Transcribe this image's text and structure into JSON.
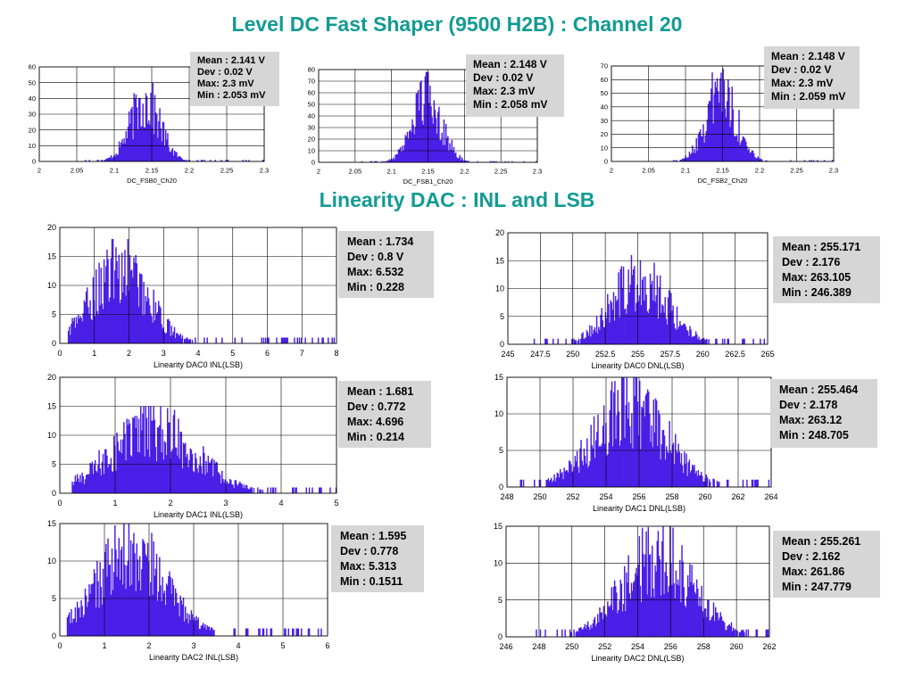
{
  "page": {
    "title": "Level DC Fast Shaper (9500 H2B) : Channel 20",
    "section_title": "Linearity DAC : INL and LSB"
  },
  "colors": {
    "bar": "#4a1fe6",
    "grid": "#000000",
    "stats_bg": "#d6d6d6",
    "title": "#129b93"
  },
  "chart_data": [
    {
      "id": "fsb0",
      "type": "bar",
      "xlabel": "DC_FSB0_Ch20",
      "ylabel": "",
      "xlim": [
        2,
        2.3
      ],
      "ylim": [
        0,
        60
      ],
      "xticks": [
        "2",
        "2.05",
        "2.1",
        "2.15",
        "2.2",
        "2.25",
        "2.3"
      ],
      "yticks": [
        "0",
        "10",
        "20",
        "30",
        "40",
        "50",
        "60"
      ],
      "distribution": {
        "mean": 2.141,
        "dev": 0.02,
        "min": 2.053,
        "max": 2.3,
        "peak": 52
      },
      "stats": [
        "Mean : 2.141 V",
        "Dev : 0.02 V",
        "Max: 2.3 mV",
        "Min : 2.053 mV"
      ]
    },
    {
      "id": "fsb1",
      "type": "bar",
      "xlabel": "DC_FSB1_Ch20",
      "ylabel": "",
      "xlim": [
        2,
        2.3
      ],
      "ylim": [
        0,
        80
      ],
      "xticks": [
        "2",
        "2.05",
        "2.1",
        "2.15",
        "2.2",
        "2.25",
        "2.3"
      ],
      "yticks": [
        "0",
        "10",
        "20",
        "30",
        "40",
        "50",
        "60",
        "70",
        "80"
      ],
      "distribution": {
        "mean": 2.148,
        "dev": 0.02,
        "min": 2.058,
        "max": 2.3,
        "peak": 78
      },
      "stats": [
        "Mean : 2.148 V",
        "Dev : 0.02 V",
        "Max: 2.3 mV",
        "Min : 2.058 mV"
      ]
    },
    {
      "id": "fsb2",
      "type": "bar",
      "xlabel": "DC_FSB2_Ch20",
      "ylabel": "",
      "xlim": [
        2,
        2.3
      ],
      "ylim": [
        0,
        70
      ],
      "xticks": [
        "2",
        "2.05",
        "2.1",
        "2.15",
        "2.2",
        "2.25",
        "2.3"
      ],
      "yticks": [
        "0",
        "10",
        "20",
        "30",
        "40",
        "50",
        "60",
        "70"
      ],
      "distribution": {
        "mean": 2.148,
        "dev": 0.02,
        "min": 2.059,
        "max": 2.3,
        "peak": 73
      },
      "stats": [
        "Mean : 2.148 V",
        "Dev : 0.02 V",
        "Max: 2.3 mV",
        "Min : 2.059 mV"
      ]
    },
    {
      "id": "inl0",
      "type": "bar",
      "xlabel": "Linearity DAC0 INL(LSB)",
      "ylabel": "",
      "xlim": [
        0,
        8
      ],
      "ylim": [
        0,
        20
      ],
      "xticks": [
        "0",
        "1",
        "2",
        "3",
        "4",
        "5",
        "6",
        "7",
        "8"
      ],
      "yticks": [
        "0",
        "5",
        "10",
        "15",
        "20"
      ],
      "distribution": {
        "mean": 1.734,
        "dev": 0.8,
        "min": 0.228,
        "max": 6.532,
        "peak": 18
      },
      "stats": [
        "Mean : 1.734",
        "Dev : 0.8 V",
        "Max: 6.532",
        "Min : 0.228"
      ]
    },
    {
      "id": "dnl0",
      "type": "bar",
      "xlabel": "Linearity DAC0 DNL(LSB)",
      "ylabel": "",
      "xlim": [
        245,
        265
      ],
      "ylim": [
        0,
        20
      ],
      "xticks": [
        "245",
        "247.5",
        "250",
        "252.5",
        "255",
        "257.5",
        "260",
        "262.5",
        "265"
      ],
      "yticks": [
        "0",
        "5",
        "10",
        "15",
        "20"
      ],
      "distribution": {
        "mean": 255.171,
        "dev": 2.176,
        "min": 246.389,
        "max": 263.105,
        "peak": 16
      },
      "stats": [
        "Mean : 255.171",
        "Dev : 2.176",
        "Max: 263.105",
        "Min : 246.389"
      ]
    },
    {
      "id": "inl1",
      "type": "bar",
      "xlabel": "Linearity DAC1 INL(LSB)",
      "ylabel": "",
      "xlim": [
        0,
        5
      ],
      "ylim": [
        0,
        20
      ],
      "xticks": [
        "0",
        "1",
        "2",
        "3",
        "4",
        "5"
      ],
      "yticks": [
        "0",
        "5",
        "10",
        "15",
        "20"
      ],
      "distribution": {
        "mean": 1.681,
        "dev": 0.772,
        "min": 0.214,
        "max": 4.696,
        "peak": 15
      },
      "stats": [
        "Mean : 1.681",
        "Dev : 0.772",
        "Max: 4.696",
        "Min : 0.214"
      ]
    },
    {
      "id": "dnl1",
      "type": "bar",
      "xlabel": "Linearity DAC1 DNL(LSB)",
      "ylabel": "",
      "xlim": [
        248,
        264
      ],
      "ylim": [
        0,
        15
      ],
      "xticks": [
        "248",
        "250",
        "252",
        "254",
        "256",
        "258",
        "260",
        "262",
        "264"
      ],
      "yticks": [
        "0",
        "5",
        "10",
        "15"
      ],
      "distribution": {
        "mean": 255.464,
        "dev": 2.178,
        "min": 248.705,
        "max": 263.12,
        "peak": 15
      },
      "stats": [
        "Mean : 255.464",
        "Dev : 2.178",
        "Max: 263.12",
        "Min : 248.705"
      ]
    },
    {
      "id": "inl2",
      "type": "bar",
      "xlabel": "Linearity DAC2 INL(LSB)",
      "ylabel": "",
      "xlim": [
        0,
        6
      ],
      "ylim": [
        0,
        15
      ],
      "xticks": [
        "0",
        "1",
        "2",
        "3",
        "4",
        "5",
        "6"
      ],
      "yticks": [
        "0",
        "5",
        "10",
        "15"
      ],
      "distribution": {
        "mean": 1.595,
        "dev": 0.778,
        "min": 0.1511,
        "max": 5.313,
        "peak": 15
      },
      "stats": [
        "Mean : 1.595",
        "Dev : 0.778",
        "Max: 5.313",
        "Min : 0.1511"
      ]
    },
    {
      "id": "dnl2",
      "type": "bar",
      "xlabel": "Linearity DAC2 DNL(LSB)",
      "ylabel": "",
      "xlim": [
        246,
        262
      ],
      "ylim": [
        0,
        15
      ],
      "xticks": [
        "246",
        "248",
        "250",
        "252",
        "254",
        "256",
        "258",
        "260",
        "262"
      ],
      "yticks": [
        "0",
        "5",
        "10",
        "15"
      ],
      "distribution": {
        "mean": 255.261,
        "dev": 2.162,
        "min": 247.779,
        "max": 261.86,
        "peak": 15
      },
      "stats": [
        "Mean : 255.261",
        "Dev : 2.162",
        "Max: 261.86",
        "Min : 247.779"
      ]
    }
  ]
}
